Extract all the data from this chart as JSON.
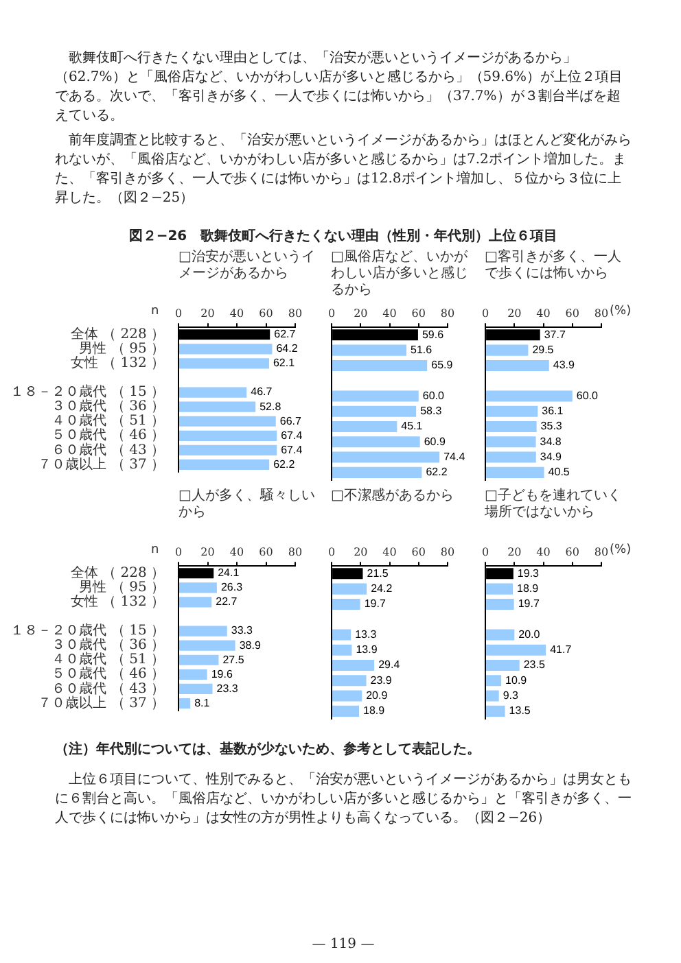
{
  "chart_data": [
    {
      "type": "bar",
      "orientation": "horizontal",
      "title": "□治安が悪いというイメージがあるから",
      "annotations": [
        "歌舞伎町へ行きたくない理由としては、「治安が悪いというイメージがあるから」（62.7%）と「風俗店など、いかがわしい店が多いと感じるから」（59.6%）が上位２項目である。次いで、「客引きが多く、一人で歩くには怖いから」（37.7%）が３割台半ばを超えている。",
        "前年度調査と比較すると、「治安が悪いというイメージがあるから」はほとんど変化がみられないが、「風俗店など、いかがわしい店が多いと感じるから」は7.2ポイント増加した。また、「客引きが多く、一人で歩くには怖いから」は12.8ポイント増加し、５位から３位に上昇した。（図２−25）",
        "図２−26　歌舞伎町へ行きたくない理由（性別・年代別）上位６項目",
        "n",
        "（注）年代別については、基数が少ないため、参考として表記した。",
        "上位６項目について、性別でみると、「治安が悪いというイメージがあるから」は男女ともに６割台と高い。「風俗店など、いかがわしい店が多いと感じるから」と「客引きが多く、一人で歩くには怖いから」は女性の方が男性よりも高くなっている。（図２−26）",
        "— 119 —"
      ],
      "categories": [
        "全体 （ 228 ）",
        "男性 （ 95 ）",
        "女性 （ 132 ）",
        null,
        "１８－２０歳代 （ 15 ）",
        "３０歳代 （ 36 ）",
        "４０歳代 （ 51 ）",
        "５０歳代 （ 46 ）",
        "６０歳代 （ 43 ）",
        "７０歳以上 （ 37 ）"
      ],
      "values": [
        62.7,
        64.2,
        62.1,
        null,
        46.7,
        52.8,
        66.7,
        67.4,
        67.4,
        62.2
      ],
      "value_labels": [
        "62.7",
        "64.2",
        "62.1",
        null,
        "46.7",
        "52.8",
        "66.7",
        "67.4",
        "67.4",
        "62.2"
      ],
      "colors": [
        "#000000",
        "#99ccff",
        "#99ccff",
        "#99ccff",
        "#99ccff",
        "#99ccff",
        "#99ccff",
        "#99ccff",
        "#99ccff",
        "#99ccff"
      ],
      "xlim": [
        0,
        80
      ],
      "xticks": [
        0,
        20,
        40,
        60,
        80
      ],
      "grid": false,
      "legend": false
    },
    {
      "type": "bar",
      "orientation": "horizontal",
      "title": "□風俗店など、いかがわしい店が多いと感じるから",
      "values": [
        59.6,
        51.6,
        65.9,
        null,
        60.0,
        58.3,
        45.1,
        60.9,
        74.4,
        62.2
      ],
      "value_labels": [
        "59.6",
        "51.6",
        "65.9",
        null,
        "60.0",
        "58.3",
        "45.1",
        "60.9",
        "74.4",
        "62.2"
      ],
      "colors": [
        "#000000",
        "#99ccff",
        "#99ccff",
        "#99ccff",
        "#99ccff",
        "#99ccff",
        "#99ccff",
        "#99ccff",
        "#99ccff",
        "#99ccff"
      ],
      "xlim": [
        0,
        80
      ],
      "xticks": [
        0,
        20,
        40,
        60,
        80
      ],
      "grid": false,
      "legend": false,
      "tick_labels": "x"
    },
    {
      "type": "bar",
      "orientation": "horizontal",
      "title": "□客引きが多く、一人で歩くには怖いから",
      "annotations": [
        "(%)"
      ],
      "values": [
        37.7,
        29.5,
        43.9,
        null,
        60.0,
        36.1,
        35.3,
        34.8,
        34.9,
        40.5
      ],
      "value_labels": [
        "37.7",
        "29.5",
        "43.9",
        null,
        "60.0",
        "36.1",
        "35.3",
        "34.8",
        "34.9",
        "40.5"
      ],
      "colors": [
        "#000000",
        "#99ccff",
        "#99ccff",
        "#99ccff",
        "#99ccff",
        "#99ccff",
        "#99ccff",
        "#99ccff",
        "#99ccff",
        "#99ccff"
      ],
      "xlim": [
        0,
        80
      ],
      "xticks": [
        0,
        20,
        40,
        60,
        80
      ],
      "grid": false,
      "legend": false,
      "tick_labels": "x"
    },
    {
      "type": "bar",
      "orientation": "horizontal",
      "title": "□人が多く、騒々しいから",
      "annotations": [
        "n"
      ],
      "categories": [
        "全体 （ 228 ）",
        "男性 （ 95 ）",
        "女性 （ 132 ）",
        null,
        "１８－２０歳代 （ 15 ）",
        "３０歳代 （ 36 ）",
        "４０歳代 （ 51 ）",
        "５０歳代 （ 46 ）",
        "６０歳代 （ 43 ）",
        "７０歳以上 （ 37 ）"
      ],
      "values": [
        24.1,
        26.3,
        22.7,
        null,
        33.3,
        38.9,
        27.5,
        19.6,
        23.3,
        8.1
      ],
      "value_labels": [
        "24.1",
        "26.3",
        "22.7",
        null,
        "33.3",
        "38.9",
        "27.5",
        "19.6",
        "23.3",
        "8.1"
      ],
      "colors": [
        "#000000",
        "#99ccff",
        "#99ccff",
        "#99ccff",
        "#99ccff",
        "#99ccff",
        "#99ccff",
        "#99ccff",
        "#99ccff",
        "#99ccff"
      ],
      "xlim": [
        0,
        80
      ],
      "xticks": [
        0,
        20,
        40,
        60,
        80
      ],
      "grid": false,
      "legend": false
    },
    {
      "type": "bar",
      "orientation": "horizontal",
      "title": "□不潔感があるから",
      "values": [
        21.5,
        24.2,
        19.7,
        null,
        13.3,
        13.9,
        29.4,
        23.9,
        20.9,
        18.9
      ],
      "value_labels": [
        "21.5",
        "24.2",
        "19.7",
        null,
        "13.3",
        "13.9",
        "29.4",
        "23.9",
        "20.9",
        "18.9"
      ],
      "colors": [
        "#000000",
        "#99ccff",
        "#99ccff",
        "#99ccff",
        "#99ccff",
        "#99ccff",
        "#99ccff",
        "#99ccff",
        "#99ccff",
        "#99ccff"
      ],
      "xlim": [
        0,
        80
      ],
      "xticks": [
        0,
        20,
        40,
        60,
        80
      ],
      "grid": false,
      "legend": false,
      "tick_labels": "x"
    },
    {
      "type": "bar",
      "orientation": "horizontal",
      "title": "□子どもを連れていく場所ではないから",
      "annotations": [
        "(%)"
      ],
      "values": [
        19.3,
        18.9,
        19.7,
        null,
        20.0,
        41.7,
        23.5,
        10.9,
        9.3,
        13.5
      ],
      "value_labels": [
        "19.3",
        "18.9",
        "19.7",
        null,
        "20.0",
        "41.7",
        "23.5",
        "10.9",
        "9.3",
        "13.5"
      ],
      "colors": [
        "#000000",
        "#99ccff",
        "#99ccff",
        "#99ccff",
        "#99ccff",
        "#99ccff",
        "#99ccff",
        "#99ccff",
        "#99ccff",
        "#99ccff"
      ],
      "xlim": [
        0,
        80
      ],
      "xticks": [
        0,
        20,
        40,
        60,
        80
      ],
      "grid": false,
      "legend": false,
      "tick_labels": "x"
    }
  ]
}
